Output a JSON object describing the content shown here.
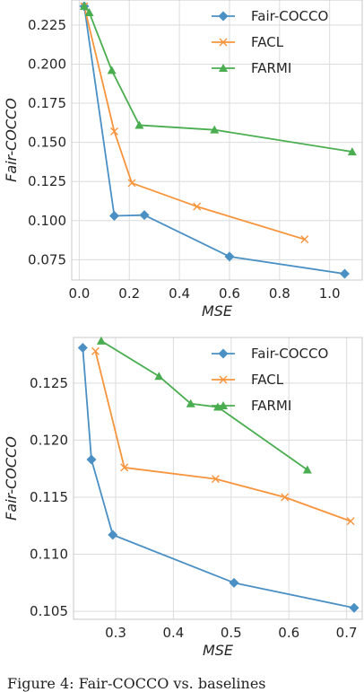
{
  "caption": "Figure 4: Fair-COCCO vs. baselines",
  "colors": {
    "Fair-COCCO": "#4a90c4",
    "FACL": "#f7943c",
    "FARMI": "#4aad50",
    "grid": "#dcdcdc",
    "frame": "#c8c8c8"
  },
  "chart_data": [
    {
      "type": "line",
      "xlabel": "MSE",
      "ylabel": "Fair-COCCO",
      "xlim": [
        -0.03,
        1.13
      ],
      "ylim": [
        0.062,
        0.241
      ],
      "xticks": [
        "0.0",
        "0.2",
        "0.4",
        "0.6",
        "0.8",
        "1.0"
      ],
      "xtick_values": [
        0.0,
        0.2,
        0.4,
        0.6,
        0.8,
        1.0
      ],
      "yticks": [
        "0.075",
        "0.100",
        "0.125",
        "0.150",
        "0.175",
        "0.200",
        "0.225"
      ],
      "ytick_values": [
        0.075,
        0.1,
        0.125,
        0.15,
        0.175,
        0.2,
        0.225
      ],
      "grid": true,
      "legend": "top-right",
      "series": [
        {
          "name": "Fair-COCCO",
          "marker": "diamond",
          "x": [
            0.02,
            0.14,
            0.26,
            0.6,
            1.06
          ],
          "y": [
            0.237,
            0.103,
            0.1035,
            0.077,
            0.066
          ]
        },
        {
          "name": "FACL",
          "marker": "x",
          "x": [
            0.02,
            0.14,
            0.21,
            0.47,
            0.9
          ],
          "y": [
            0.237,
            0.157,
            0.124,
            0.109,
            0.088
          ]
        },
        {
          "name": "FARMI",
          "marker": "triangle",
          "x": [
            0.02,
            0.04,
            0.13,
            0.24,
            0.54,
            1.09
          ],
          "y": [
            0.237,
            0.233,
            0.196,
            0.161,
            0.158,
            0.144
          ]
        }
      ]
    },
    {
      "type": "line",
      "xlabel": "MSE",
      "ylabel": "Fair-COCCO",
      "xlim": [
        0.227,
        0.727
      ],
      "ylim": [
        0.1043,
        0.129
      ],
      "xticks": [
        "0.3",
        "0.4",
        "0.5",
        "0.6",
        "0.7"
      ],
      "xtick_values": [
        0.3,
        0.4,
        0.5,
        0.6,
        0.7
      ],
      "yticks": [
        "0.105",
        "0.110",
        "0.115",
        "0.120",
        "0.125"
      ],
      "ytick_values": [
        0.105,
        0.11,
        0.115,
        0.12,
        0.125
      ],
      "grid": true,
      "legend": "top-right",
      "series": [
        {
          "name": "Fair-COCCO",
          "marker": "diamond",
          "x": [
            0.243,
            0.258,
            0.295,
            0.505,
            0.713
          ],
          "y": [
            0.1281,
            0.1183,
            0.1117,
            0.1075,
            0.1053
          ]
        },
        {
          "name": "FACL",
          "marker": "x",
          "x": [
            0.265,
            0.315,
            0.473,
            0.593,
            0.707
          ],
          "y": [
            0.1278,
            0.1176,
            0.1166,
            0.115,
            0.1129
          ]
        },
        {
          "name": "FARMI",
          "marker": "triangle",
          "x": [
            0.275,
            0.375,
            0.43,
            0.477,
            0.632
          ],
          "y": [
            0.1287,
            0.1256,
            0.1232,
            0.1229,
            0.1174
          ]
        }
      ]
    }
  ]
}
